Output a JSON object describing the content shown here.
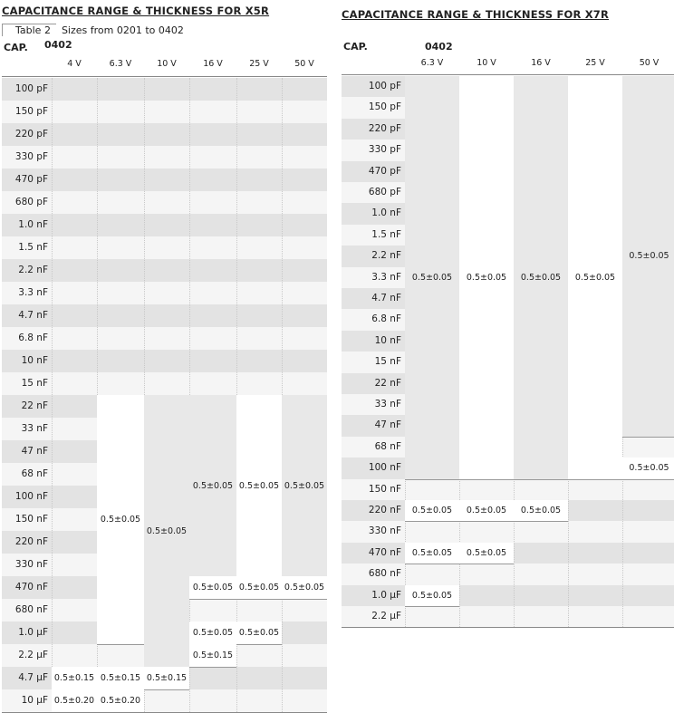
{
  "x5r": {
    "title": "CAPACITANCE RANGE & THICKNESS FOR X5R",
    "caption_label": "Table 2",
    "caption_text": "Sizes from 0201 to 0402",
    "cap_header": "CAP.",
    "size_header": "0402",
    "voltages": [
      "4 V",
      "6.3 V",
      "10 V",
      "16 V",
      "25 V",
      "50 V"
    ],
    "rows": [
      "100 pF",
      "150 pF",
      "220 pF",
      "330 pF",
      "470 pF",
      "680 pF",
      "1.0 nF",
      "1.5 nF",
      "2.2 nF",
      "3.3 nF",
      "4.7 nF",
      "6.8 nF",
      "10 nF",
      "15 nF",
      "22 nF",
      "33 nF",
      "47 nF",
      "68 nF",
      "100 nF",
      "150 nF",
      "220 nF",
      "330 nF",
      "470 nF",
      "680 nF",
      "1.0 µF",
      "2.2 µF",
      "4.7 µF",
      "10 µF"
    ],
    "blocks": [
      {
        "col": 1,
        "from": 14,
        "to": 24,
        "text": "0.5±0.05"
      },
      {
        "col": 2,
        "from": 14,
        "to": 25,
        "text": "0.5±0.05"
      },
      {
        "col": 3,
        "from": 14,
        "to": 21,
        "text": "0.5±0.05"
      },
      {
        "col": 4,
        "from": 14,
        "to": 21,
        "text": "0.5±0.05"
      },
      {
        "col": 5,
        "from": 14,
        "to": 21,
        "text": "0.5±0.05"
      },
      {
        "col": 3,
        "from": 22,
        "to": 22,
        "text": "0.5±0.05"
      },
      {
        "col": 4,
        "from": 22,
        "to": 22,
        "text": "0.5±0.05"
      },
      {
        "col": 5,
        "from": 22,
        "to": 22,
        "text": "0.5±0.05"
      },
      {
        "col": 3,
        "from": 24,
        "to": 24,
        "text": "0.5±0.05"
      },
      {
        "col": 4,
        "from": 24,
        "to": 24,
        "text": "0.5±0.05"
      },
      {
        "col": 3,
        "from": 25,
        "to": 25,
        "text": "0.5±0.15"
      },
      {
        "col": 0,
        "from": 26,
        "to": 26,
        "text": "0.5±0.15"
      },
      {
        "col": 1,
        "from": 26,
        "to": 26,
        "text": "0.5±0.15"
      },
      {
        "col": 2,
        "from": 26,
        "to": 26,
        "text": "0.5±0.15"
      },
      {
        "col": 0,
        "from": 27,
        "to": 27,
        "text": "0.5±0.20"
      },
      {
        "col": 1,
        "from": 27,
        "to": 27,
        "text": "0.5±0.20"
      }
    ]
  },
  "x7r": {
    "title": "CAPACITANCE RANGE & THICKNESS FOR X7R",
    "cap_header": "CAP.",
    "size_header": "0402",
    "voltages": [
      "6.3 V",
      "10 V",
      "16 V",
      "25 V",
      "50 V"
    ],
    "rows": [
      "100 pF",
      "150 pF",
      "220 pF",
      "330 pF",
      "470 pF",
      "680 pF",
      "1.0 nF",
      "1.5 nF",
      "2.2 nF",
      "3.3 nF",
      "4.7 nF",
      "6.8 nF",
      "10 nF",
      "15 nF",
      "22 nF",
      "33 nF",
      "47 nF",
      "68 nF",
      "100 nF",
      "150 nF",
      "220 nF",
      "330 nF",
      "470 nF",
      "680 nF",
      "1.0 µF",
      "2.2 µF"
    ],
    "blocks": [
      {
        "col": 0,
        "from": 0,
        "to": 18,
        "text": "0.5±0.05"
      },
      {
        "col": 1,
        "from": 0,
        "to": 18,
        "text": "0.5±0.05"
      },
      {
        "col": 2,
        "from": 0,
        "to": 18,
        "text": "0.5±0.05"
      },
      {
        "col": 3,
        "from": 0,
        "to": 18,
        "text": "0.5±0.05"
      },
      {
        "col": 4,
        "from": 0,
        "to": 16,
        "text": "0.5±0.05"
      },
      {
        "col": 4,
        "from": 18,
        "to": 18,
        "text": "0.5±0.05"
      },
      {
        "col": 0,
        "from": 20,
        "to": 20,
        "text": "0.5±0.05"
      },
      {
        "col": 1,
        "from": 20,
        "to": 20,
        "text": "0.5±0.05"
      },
      {
        "col": 2,
        "from": 20,
        "to": 20,
        "text": "0.5±0.05"
      },
      {
        "col": 0,
        "from": 22,
        "to": 22,
        "text": "0.5±0.05"
      },
      {
        "col": 1,
        "from": 22,
        "to": 22,
        "text": "0.5±0.05"
      },
      {
        "col": 0,
        "from": 24,
        "to": 24,
        "text": "0.5±0.05"
      }
    ]
  }
}
